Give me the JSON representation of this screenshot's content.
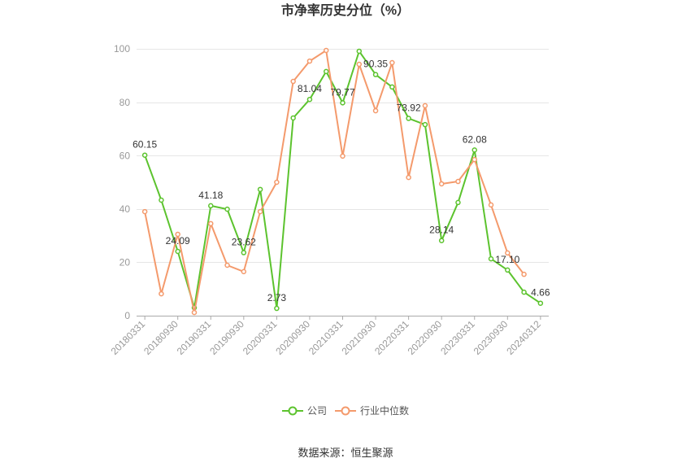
{
  "chart_data": {
    "type": "line",
    "title": "市净率历史分位（%）",
    "categories": [
      "20180331",
      "",
      "20180930",
      "",
      "20190331",
      "",
      "20190930",
      "",
      "20200331",
      "",
      "20200930",
      "",
      "20210331",
      "",
      "20210930",
      "",
      "20220331",
      "",
      "20220930",
      "",
      "20230331",
      "",
      "20230930",
      "",
      "20240312"
    ],
    "yticks": [
      0,
      20,
      40,
      60,
      80,
      100
    ],
    "ylim": [
      0,
      100
    ],
    "grid": true,
    "legend_position": "bottom",
    "series": [
      {
        "name": "公司",
        "color": "#5cc32e",
        "values": [
          60.15,
          43.3,
          24.09,
          3.0,
          41.18,
          39.9,
          23.62,
          47.3,
          2.73,
          74.1,
          81.04,
          91.5,
          79.77,
          99.1,
          90.35,
          85.7,
          73.92,
          71.6,
          28.14,
          42.4,
          62.08,
          21.3,
          17.1,
          8.8,
          4.66
        ],
        "data_labels": [
          "60.15",
          null,
          "24.09",
          null,
          "41.18",
          null,
          "23.62",
          null,
          "2.73",
          null,
          "81.04",
          null,
          "79.77",
          null,
          "90.35",
          null,
          "73.92",
          null,
          "28.14",
          null,
          "62.08",
          null,
          "17.10",
          null,
          "4.66"
        ]
      },
      {
        "name": "行业中位数",
        "color": "#f49a6c",
        "values": [
          39.0,
          8.2,
          30.5,
          1.2,
          34.5,
          18.9,
          16.5,
          39.0,
          50.0,
          87.8,
          95.4,
          99.4,
          59.8,
          94.2,
          76.8,
          94.8,
          51.8,
          78.7,
          49.4,
          50.3,
          58.5,
          41.5,
          23.5,
          15.5,
          null
        ]
      }
    ]
  },
  "source": "数据来源：恒生聚源"
}
